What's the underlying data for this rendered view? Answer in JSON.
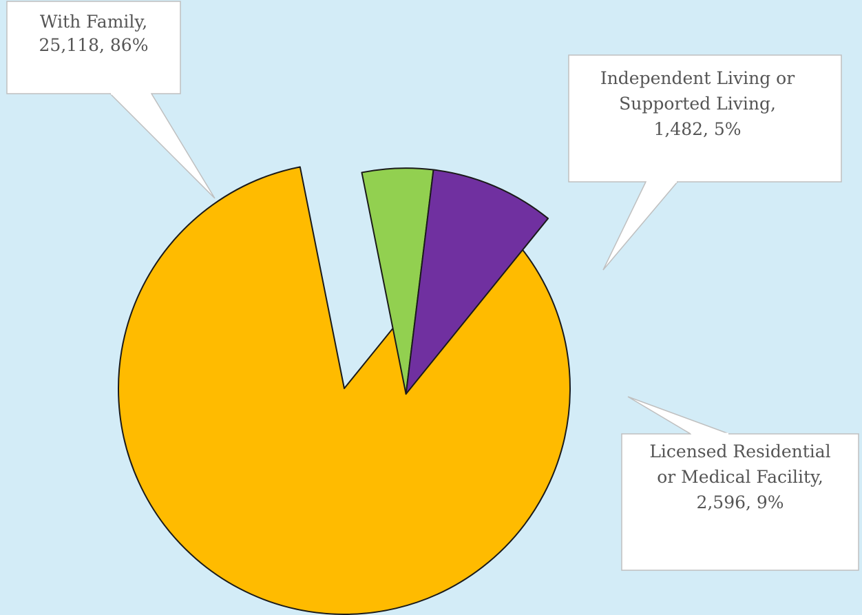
{
  "chart_data": {
    "type": "pie",
    "title": "",
    "slices": [
      {
        "name": "With Family",
        "value": 25118,
        "percent": 86,
        "color": "#ffbb00",
        "exploded": false,
        "label_lines": [
          "With Family,",
          "25,118, 86%"
        ]
      },
      {
        "name": "Independent Living or Supported Living",
        "value": 1482,
        "percent": 5,
        "color": "#92d050",
        "exploded": true,
        "label_lines": [
          "Independent Living or",
          "Supported Living,",
          "1,482, 5%"
        ]
      },
      {
        "name": "Licensed Residential or Medical Facility",
        "value": 2596,
        "percent": 9,
        "color": "#7030a0",
        "exploded": true,
        "label_lines": [
          "Licensed Residential",
          "or Medical Facility,",
          "2,596, 9%"
        ]
      }
    ],
    "legend": "none",
    "data_labels": "callouts"
  },
  "colors": {
    "background": "#d3ecf7",
    "slice_outline": "#1a1a1a",
    "callout_border": "#bfbfbf",
    "callout_fill": "#ffffff",
    "label_text": "#555555"
  }
}
